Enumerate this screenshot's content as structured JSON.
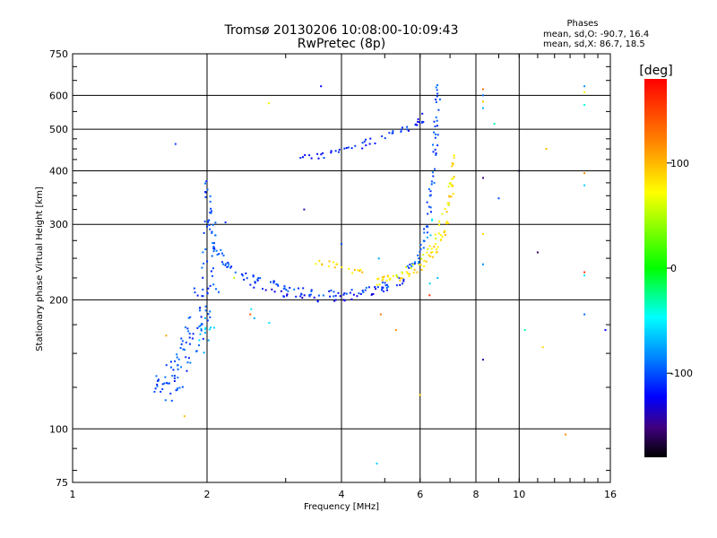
{
  "chart_data": {
    "type": "scatter",
    "title": "Tromsø 20130206 10:08:00-10:09:43",
    "subtitle": "RwPretec (8p)",
    "xlabel": "Frequency [MHz]",
    "ylabel": "Stationary phase Virtual Height [km]",
    "xscale": "log",
    "yscale": "log",
    "xlim": [
      1,
      16
    ],
    "ylim": [
      75,
      750
    ],
    "x_ticks": [
      1,
      2,
      4,
      6,
      8,
      10,
      16
    ],
    "x_tick_labels": [
      "1",
      "2",
      "4",
      "6",
      "8",
      "10",
      "16"
    ],
    "y_ticks": [
      75,
      100,
      200,
      300,
      400,
      500,
      600,
      750
    ],
    "y_tick_labels": [
      "75",
      "100",
      "200",
      "300",
      "400",
      "500",
      "600",
      "750"
    ],
    "grid": true,
    "stats": {
      "header": "Phases",
      "line_o": "mean, sd,O: -90.7, 16.4",
      "line_x": "mean, sd,X:  86.7, 18.5"
    },
    "colorbar": {
      "label": "[deg]",
      "range": [
        -180,
        180
      ],
      "ticks": [
        100,
        0,
        -100
      ],
      "tick_labels": [
        "100",
        "0",
        "-100"
      ]
    },
    "traces": [
      {
        "phase": -100,
        "points": [
          [
            1.55,
            125
          ],
          [
            1.6,
            122
          ],
          [
            1.65,
            128
          ],
          [
            1.7,
            135
          ],
          [
            1.75,
            145
          ],
          [
            1.8,
            155
          ],
          [
            1.85,
            165
          ],
          [
            1.9,
            175
          ],
          [
            1.95,
            190
          ],
          [
            2.0,
            210
          ],
          [
            2.05,
            240
          ],
          [
            2.08,
            270
          ],
          [
            2.1,
            300
          ]
        ],
        "spread": 0.05,
        "repeat": 10
      },
      {
        "phase": -100,
        "points": [
          [
            2.0,
            380
          ],
          [
            2.02,
            330
          ],
          [
            2.05,
            290
          ],
          [
            2.1,
            260
          ],
          [
            2.2,
            240
          ],
          [
            2.4,
            228
          ],
          [
            2.6,
            222
          ],
          [
            2.9,
            216
          ],
          [
            3.2,
            210
          ],
          [
            3.6,
            208
          ],
          [
            4.0,
            207
          ],
          [
            4.5,
            210
          ],
          [
            5.0,
            216
          ],
          [
            5.5,
            228
          ],
          [
            5.9,
            245
          ],
          [
            6.1,
            270
          ],
          [
            6.25,
            310
          ],
          [
            6.35,
            360
          ],
          [
            6.45,
            420
          ],
          [
            6.5,
            480
          ],
          [
            6.55,
            560
          ],
          [
            6.6,
            630
          ]
        ],
        "spread": 0.012,
        "repeat": 8
      },
      {
        "phase": -120,
        "points": [
          [
            2.5,
            218
          ],
          [
            2.8,
            210
          ],
          [
            3.1,
            204
          ],
          [
            3.5,
            201
          ],
          [
            4.0,
            202
          ],
          [
            4.5,
            206
          ],
          [
            5.0,
            212
          ],
          [
            5.5,
            220
          ]
        ],
        "spread": 0.01,
        "repeat": 6
      },
      {
        "phase": -110,
        "points": [
          [
            3.2,
            430
          ],
          [
            3.5,
            435
          ],
          [
            3.7,
            430
          ],
          [
            4.0,
            445
          ],
          [
            4.3,
            455
          ],
          [
            4.6,
            465
          ],
          [
            5.0,
            480
          ],
          [
            5.4,
            495
          ],
          [
            5.8,
            510
          ],
          [
            6.0,
            520
          ],
          [
            6.1,
            535
          ]
        ],
        "spread": 0.012,
        "repeat": 5
      },
      {
        "phase": 90,
        "points": [
          [
            3.5,
            245
          ],
          [
            3.8,
            242
          ],
          [
            4.2,
            235
          ],
          [
            4.6,
            228
          ],
          [
            5.0,
            224
          ],
          [
            5.4,
            225
          ],
          [
            5.8,
            232
          ],
          [
            6.1,
            240
          ],
          [
            6.4,
            255
          ],
          [
            6.6,
            270
          ],
          [
            6.8,
            290
          ],
          [
            6.95,
            320
          ],
          [
            7.05,
            360
          ],
          [
            7.1,
            400
          ],
          [
            7.1,
            440
          ]
        ],
        "spread": 0.01,
        "repeat": 6
      },
      {
        "phase": 70,
        "points": [
          [
            4.8,
            218
          ],
          [
            5.2,
            225
          ],
          [
            5.6,
            235
          ],
          [
            6.0,
            248
          ],
          [
            6.3,
            262
          ],
          [
            6.5,
            285
          ],
          [
            6.7,
            310
          ],
          [
            6.9,
            345
          ],
          [
            7.0,
            380
          ]
        ],
        "spread": 0.012,
        "repeat": 4
      },
      {
        "phase": -60,
        "points": [
          [
            2.0,
            180
          ],
          [
            2.1,
            170
          ],
          [
            1.9,
            160
          ],
          [
            2.05,
            190
          ],
          [
            1.95,
            150
          ],
          [
            6.3,
            280
          ],
          [
            6.2,
            320
          ],
          [
            6.4,
            230
          ],
          [
            6.5,
            210
          ],
          [
            2.05,
            175
          ],
          [
            1.9,
            170
          ],
          [
            2.1,
            160
          ]
        ],
        "spread": 0.03,
        "repeat": 2
      }
    ],
    "scatter_points": [
      {
        "x": 1.7,
        "y": 462,
        "phase": -100
      },
      {
        "x": 3.6,
        "y": 630,
        "phase": -120
      },
      {
        "x": 2.75,
        "y": 575,
        "phase": 70
      },
      {
        "x": 3.3,
        "y": 325,
        "phase": -140
      },
      {
        "x": 4.0,
        "y": 270,
        "phase": -100
      },
      {
        "x": 4.8,
        "y": 83,
        "phase": -60
      },
      {
        "x": 5.3,
        "y": 170,
        "phase": 120
      },
      {
        "x": 6.0,
        "y": 120,
        "phase": 90
      },
      {
        "x": 8.3,
        "y": 620,
        "phase": 130
      },
      {
        "x": 8.3,
        "y": 600,
        "phase": -90
      },
      {
        "x": 8.3,
        "y": 580,
        "phase": 100
      },
      {
        "x": 8.3,
        "y": 560,
        "phase": -70
      },
      {
        "x": 8.3,
        "y": 385,
        "phase": -150
      },
      {
        "x": 8.3,
        "y": 285,
        "phase": 90
      },
      {
        "x": 8.3,
        "y": 242,
        "phase": -80
      },
      {
        "x": 8.3,
        "y": 145,
        "phase": -140
      },
      {
        "x": 8.8,
        "y": 515,
        "phase": -30
      },
      {
        "x": 9.0,
        "y": 345,
        "phase": -100
      },
      {
        "x": 10.0,
        "y": 400,
        "phase": -170
      },
      {
        "x": 11.0,
        "y": 258,
        "phase": -160
      },
      {
        "x": 10.3,
        "y": 170,
        "phase": -30
      },
      {
        "x": 11.3,
        "y": 155,
        "phase": 90
      },
      {
        "x": 11.5,
        "y": 450,
        "phase": 100
      },
      {
        "x": 12.7,
        "y": 97,
        "phase": 120
      },
      {
        "x": 14.0,
        "y": 630,
        "phase": -80
      },
      {
        "x": 14.0,
        "y": 610,
        "phase": 80
      },
      {
        "x": 14.0,
        "y": 570,
        "phase": -40
      },
      {
        "x": 14.0,
        "y": 395,
        "phase": 120
      },
      {
        "x": 14.0,
        "y": 370,
        "phase": -60
      },
      {
        "x": 14.0,
        "y": 232,
        "phase": 160
      },
      {
        "x": 14.0,
        "y": 228,
        "phase": -50
      },
      {
        "x": 14.0,
        "y": 185,
        "phase": -90
      },
      {
        "x": 15.6,
        "y": 170,
        "phase": -120
      },
      {
        "x": 2.3,
        "y": 225,
        "phase": 60
      },
      {
        "x": 2.5,
        "y": 185,
        "phase": 140
      },
      {
        "x": 1.62,
        "y": 165,
        "phase": 110
      },
      {
        "x": 1.78,
        "y": 107,
        "phase": 100
      },
      {
        "x": 4.9,
        "y": 185,
        "phase": 130
      },
      {
        "x": 6.3,
        "y": 205,
        "phase": 160
      }
    ]
  }
}
